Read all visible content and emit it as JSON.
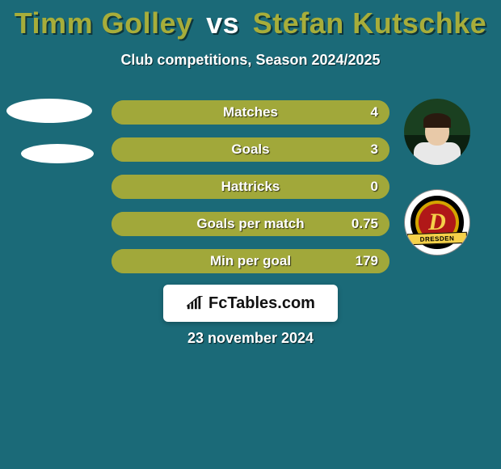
{
  "background_color": "#1b6a78",
  "title": {
    "player1": "Timm Golley",
    "vs": "vs",
    "player2": "Stefan Kutschke",
    "p1_color": "#a7ad3a",
    "vs_color": "#ffffff",
    "p2_color": "#a7ad3a"
  },
  "subtitle": "Club competitions, Season 2024/2025",
  "bars": {
    "track_border": "#8c932f",
    "track_bg": "#b6bd44",
    "fill_color": "#a1a83a",
    "rows": [
      {
        "label": "Matches",
        "right_value": "4",
        "fill_pct": 100
      },
      {
        "label": "Goals",
        "right_value": "3",
        "fill_pct": 100
      },
      {
        "label": "Hattricks",
        "right_value": "0",
        "fill_pct": 100
      },
      {
        "label": "Goals per match",
        "right_value": "0.75",
        "fill_pct": 100
      },
      {
        "label": "Min per goal",
        "right_value": "179",
        "fill_pct": 100
      }
    ]
  },
  "crest_banner_text": "DRESDEN",
  "brand": "FcTables.com",
  "date": "23 november 2024"
}
